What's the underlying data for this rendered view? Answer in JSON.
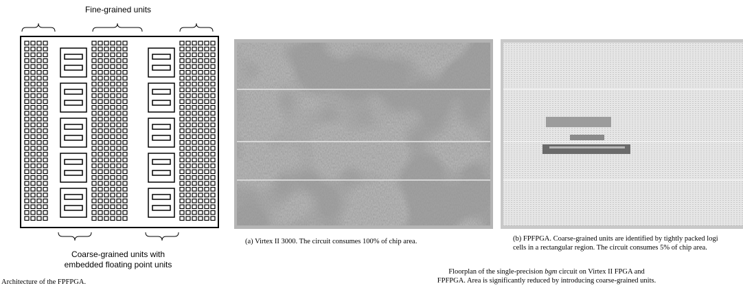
{
  "architecture": {
    "top_label": "Fine-grained units",
    "bottom_label_lines": [
      "Coarse-grained units with",
      "embedded floating point units"
    ],
    "caption": "Architecture of the FPFPGA."
  },
  "floorplan": {
    "subfigures": [
      {
        "caption_lines": [
          "(a) Virtex II 3000. The circuit consumes 100% of chip area."
        ]
      },
      {
        "caption_lines": [
          "(b) FPFPGA. Coarse-grained units are identified by tightly packed logi",
          "cells in a rectangular region. The circuit consumes 5% of chip area."
        ]
      }
    ],
    "caption": {
      "line1_parts": [
        "Floorplan of the single-precision ",
        "bgm",
        " circuit on Virtex II FPGA and"
      ],
      "line2": "FPFPGA. Area is significantly reduced by introducing coarse-grained units."
    }
  }
}
